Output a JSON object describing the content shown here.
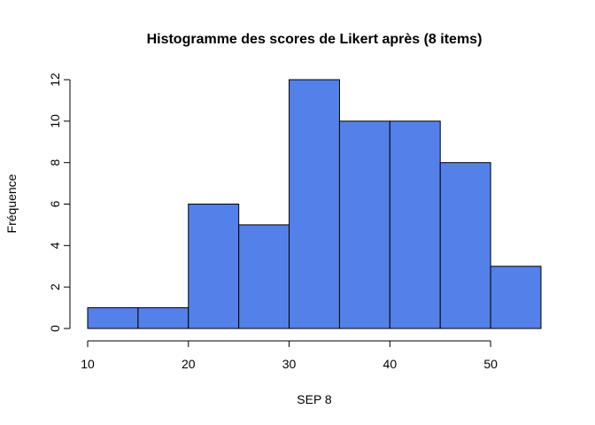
{
  "chart_data": {
    "type": "bar",
    "title": "Histogramme des scores de Likert après (8 items)",
    "xlabel": "SEP 8",
    "ylabel": "Fréquence",
    "bins": [
      [
        10,
        15
      ],
      [
        15,
        20
      ],
      [
        20,
        25
      ],
      [
        25,
        30
      ],
      [
        30,
        35
      ],
      [
        35,
        40
      ],
      [
        40,
        45
      ],
      [
        45,
        50
      ],
      [
        50,
        55
      ]
    ],
    "values": [
      1,
      1,
      6,
      5,
      12,
      10,
      10,
      8,
      3
    ],
    "xlim": [
      10,
      55
    ],
    "ylim": [
      0,
      12
    ],
    "xticks": [
      10,
      20,
      30,
      40,
      50
    ],
    "yticks": [
      0,
      2,
      4,
      6,
      8,
      10,
      12
    ],
    "bar_color": "#5481E9",
    "grid": false
  }
}
